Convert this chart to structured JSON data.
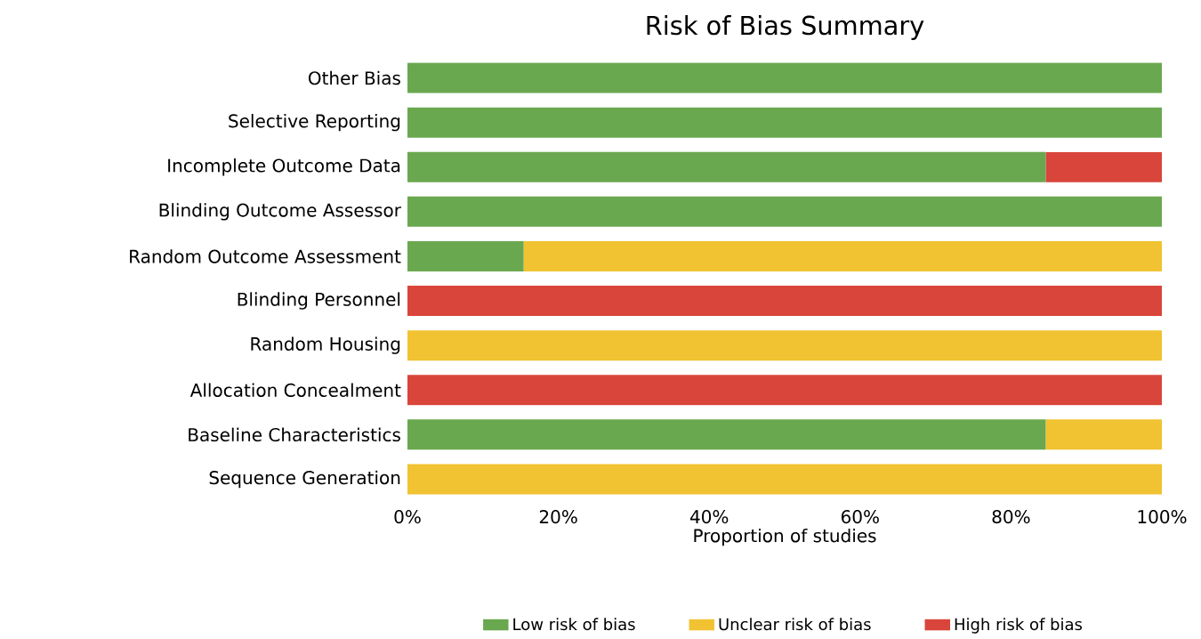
{
  "chart_data": {
    "type": "bar",
    "orientation": "horizontal",
    "stacked": true,
    "title": "Risk of Bias Summary",
    "xlabel": "Proportion of studies",
    "categories": [
      "Other Bias",
      "Selective Reporting",
      "Incomplete Outcome Data",
      "Blinding Outcome Assessor",
      "Random Outcome Assessment",
      "Blinding Personnel",
      "Random Housing",
      "Allocation Concealment",
      "Baseline Characteristics",
      "Sequence Generation"
    ],
    "series": [
      {
        "name": "Low risk of bias",
        "color": "#6aa84f",
        "values": [
          100,
          100,
          84.6,
          100,
          15.4,
          0,
          0,
          0,
          84.6,
          0
        ]
      },
      {
        "name": "Unclear risk of bias",
        "color": "#f1c232",
        "values": [
          0,
          0,
          0,
          0,
          84.6,
          0,
          100,
          0,
          15.4,
          100
        ]
      },
      {
        "name": "High risk of bias",
        "color": "#d9453a",
        "values": [
          0,
          0,
          15.4,
          0,
          0,
          100,
          0,
          100,
          0,
          0
        ]
      }
    ],
    "xlim": [
      0,
      100
    ],
    "xticks": [
      {
        "value": 0,
        "label": "0%"
      },
      {
        "value": 20,
        "label": "20%"
      },
      {
        "value": 40,
        "label": "40%"
      },
      {
        "value": 60,
        "label": "60%"
      },
      {
        "value": 80,
        "label": "80%"
      },
      {
        "value": 100,
        "label": "100%"
      }
    ],
    "legend": "bottom"
  }
}
